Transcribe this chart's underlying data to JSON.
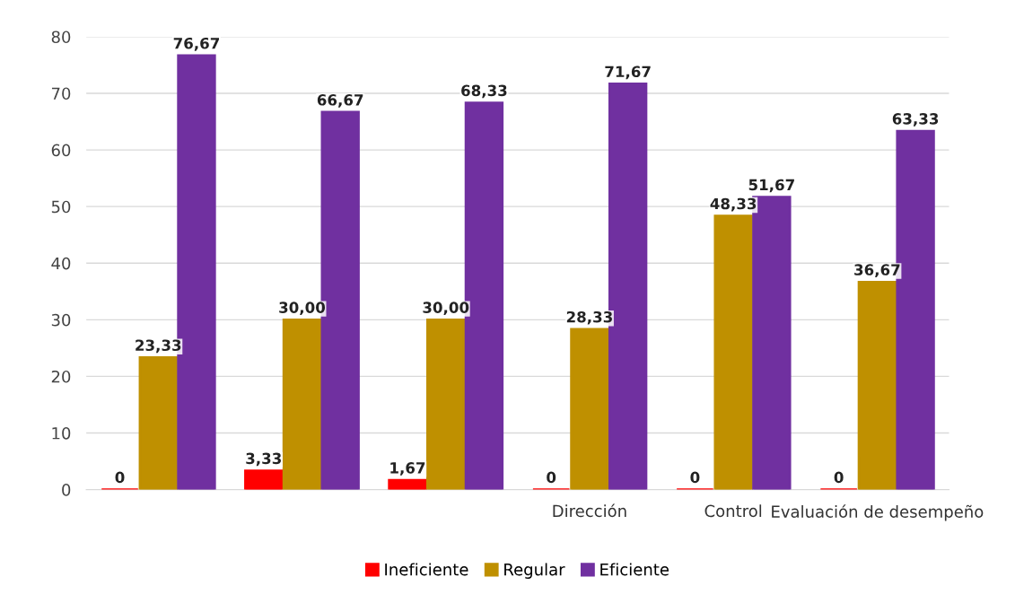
{
  "chart_data": {
    "type": "bar",
    "categories": [
      null,
      null,
      null,
      "Dirección",
      "Control",
      "Evaluación de desempeño"
    ],
    "series": [
      {
        "name": "Ineficiente",
        "color": "#ff0000",
        "values": [
          0,
          3.33,
          1.67,
          0,
          0,
          0
        ],
        "value_labels": [
          "0",
          "3,33",
          "1,67",
          "0",
          "0",
          "0"
        ]
      },
      {
        "name": "Regular",
        "color": "#bf9000",
        "values": [
          23.33,
          30.0,
          30.0,
          28.33,
          48.33,
          36.67
        ],
        "value_labels": [
          "23,33",
          "30,00",
          "30,00",
          "28,33",
          "48,33",
          "36,67"
        ]
      },
      {
        "name": "Eficiente",
        "color": "#7030a0",
        "values": [
          76.67,
          66.67,
          68.33,
          71.67,
          51.67,
          63.33
        ],
        "value_labels": [
          "76,67",
          "66,67",
          "68,33",
          "71,67",
          "51,67",
          "63,33"
        ]
      }
    ],
    "ylim": [
      0,
      80
    ],
    "yticks": [
      0,
      10,
      20,
      30,
      40,
      50,
      60,
      70,
      80
    ],
    "grid": "y",
    "legend": "bottom"
  }
}
